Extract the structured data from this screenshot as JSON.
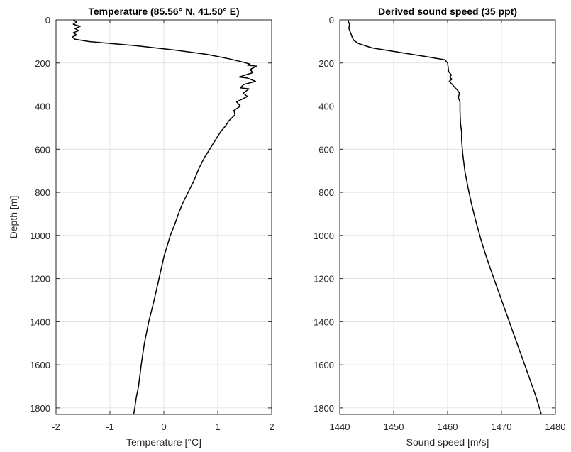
{
  "chart_data": [
    {
      "type": "line",
      "title": "Temperature (85.56° N, 41.50° E)",
      "xlabel": "Temperature [°C]",
      "ylabel": "Depth [m]",
      "xlim": [
        -2,
        2
      ],
      "ylim": [
        0,
        1830
      ],
      "y_reversed": true,
      "grid": true,
      "xticks": [
        "-2",
        "-1",
        "0",
        "1",
        "2"
      ],
      "yticks": [
        "0",
        "200",
        "400",
        "600",
        "800",
        "1000",
        "1200",
        "1400",
        "1600",
        "1800"
      ],
      "series": [
        {
          "color": "#000000",
          "x": [
            -1.68,
            -1.62,
            -1.68,
            -1.62,
            -1.55,
            -1.65,
            -1.58,
            -1.68,
            -1.62,
            -1.7,
            -1.65,
            -1.4,
            -0.5,
            0.2,
            0.8,
            1.2,
            1.45,
            1.6,
            1.55,
            1.72,
            1.6,
            1.65,
            1.52,
            1.4,
            1.55,
            1.7,
            1.48,
            1.42,
            1.58,
            1.47,
            1.55,
            1.35,
            1.42,
            1.3,
            1.32,
            1.2,
            1.15,
            1.05,
            0.95,
            0.85,
            0.75,
            0.65,
            0.55,
            0.45,
            0.35,
            0.27,
            0.2,
            0.12,
            0.06,
            0.0,
            -0.09,
            -0.18,
            -0.28,
            -0.36,
            -0.42,
            -0.47,
            -0.51,
            -0.54,
            -0.56
          ],
          "y": [
            0,
            10,
            20,
            25,
            30,
            40,
            50,
            60,
            70,
            80,
            90,
            100,
            120,
            140,
            160,
            180,
            195,
            205,
            210,
            215,
            230,
            245,
            255,
            265,
            270,
            285,
            300,
            315,
            320,
            340,
            355,
            380,
            400,
            420,
            440,
            470,
            490,
            520,
            560,
            600,
            640,
            690,
            750,
            800,
            850,
            900,
            950,
            1000,
            1050,
            1100,
            1200,
            1300,
            1400,
            1500,
            1600,
            1700,
            1750,
            1800,
            1830
          ]
        }
      ]
    },
    {
      "type": "line",
      "title": "Derived sound speed (35 ppt)",
      "xlabel": "Sound speed [m/s]",
      "ylabel": "",
      "xlim": [
        1440,
        1480
      ],
      "ylim": [
        0,
        1830
      ],
      "y_reversed": true,
      "grid": true,
      "xticks": [
        "1440",
        "1450",
        "1460",
        "1470",
        "1480"
      ],
      "yticks": [
        "0",
        "200",
        "400",
        "600",
        "800",
        "1000",
        "1200",
        "1400",
        "1600",
        "1800"
      ],
      "series": [
        {
          "color": "#000000",
          "x": [
            1441.5,
            1441.8,
            1441.7,
            1442.0,
            1442.3,
            1442.6,
            1443.5,
            1446.0,
            1451.0,
            1456.0,
            1459.5,
            1460.0,
            1460.1,
            1460.2,
            1460.7,
            1460.4,
            1460.8,
            1460.3,
            1460.9,
            1461.2,
            1461.8,
            1462.2,
            1462.0,
            1462.3,
            1462.3,
            1462.4,
            1462.6,
            1462.6,
            1462.8,
            1463.2,
            1463.8,
            1464.5,
            1465.3,
            1466.2,
            1467.2,
            1468.3,
            1470.3,
            1472.3,
            1474.3,
            1476.3,
            1477.4
          ],
          "y": [
            0,
            20,
            40,
            60,
            80,
            95,
            110,
            130,
            150,
            170,
            185,
            200,
            220,
            240,
            255,
            265,
            275,
            285,
            300,
            310,
            325,
            340,
            360,
            380,
            420,
            480,
            520,
            560,
            620,
            700,
            780,
            860,
            940,
            1020,
            1100,
            1180,
            1320,
            1460,
            1600,
            1740,
            1830
          ]
        }
      ]
    }
  ]
}
